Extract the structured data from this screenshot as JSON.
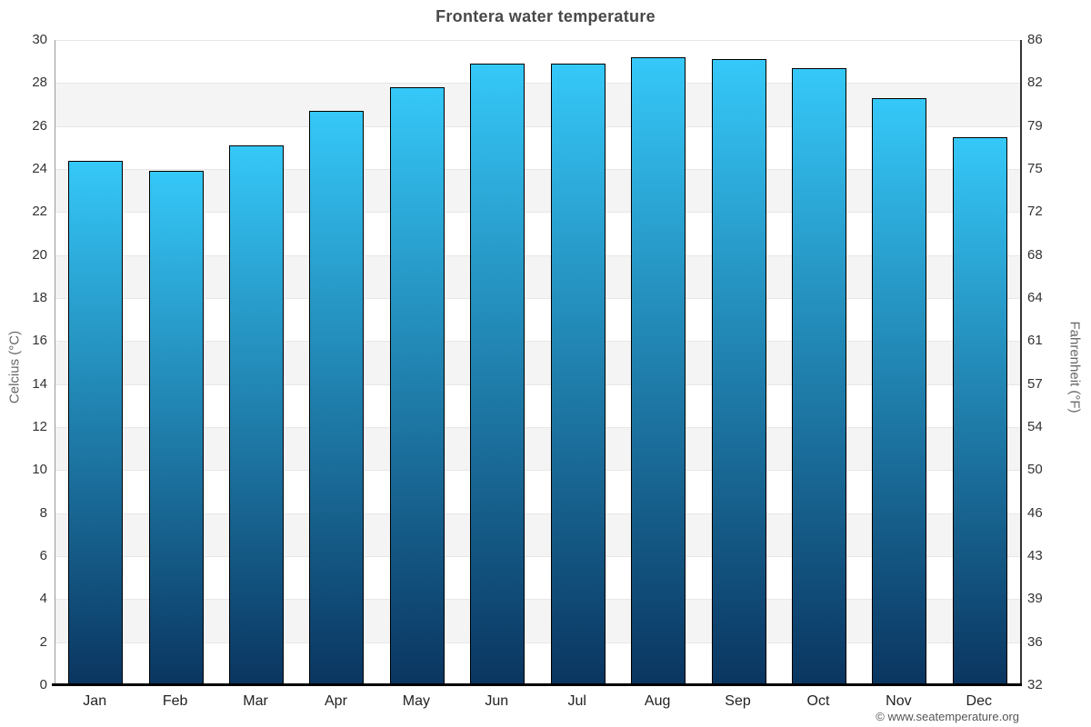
{
  "page": {
    "title": "Frontera water temperature",
    "credit": "© www.seatemperature.org"
  },
  "chart_data": {
    "type": "bar",
    "title": "Frontera water temperature",
    "categories": [
      "Jan",
      "Feb",
      "Mar",
      "Apr",
      "May",
      "Jun",
      "Jul",
      "Aug",
      "Sep",
      "Oct",
      "Nov",
      "Dec"
    ],
    "series": [
      {
        "name": "Water temperature",
        "unit": "°C",
        "values": [
          24.4,
          23.9,
          25.1,
          26.7,
          27.8,
          28.9,
          28.9,
          29.2,
          29.1,
          28.7,
          27.3,
          25.5
        ]
      }
    ],
    "ylabel_left": "Celcius (°C)",
    "ylabel_right": "Fahrenheit (°F)",
    "yticks_left": [
      0,
      2,
      4,
      6,
      8,
      10,
      12,
      14,
      16,
      18,
      20,
      22,
      24,
      26,
      28,
      30
    ],
    "yticks_right": [
      32,
      36,
      39,
      43,
      46,
      50,
      54,
      57,
      61,
      64,
      68,
      72,
      75,
      79,
      82,
      86
    ],
    "ylim": [
      0,
      30
    ],
    "xlabel": "",
    "legend": "none",
    "grid": "alternating horizontal bands every 2°C",
    "band_ranges_gray": [
      [
        2,
        4
      ],
      [
        6,
        8
      ],
      [
        10,
        12
      ],
      [
        14,
        16
      ],
      [
        18,
        20
      ],
      [
        22,
        24
      ],
      [
        26,
        28
      ]
    ],
    "colors": {
      "bar_top": "#35c8f8",
      "bar_bottom": "#0a3560",
      "bar_border": "#000000",
      "band_gray": "#f4f4f4",
      "gridline": "#e7e7e7",
      "title": "#484848",
      "tick_label": "#333333",
      "axis_title": "#666666",
      "bottom_axis": "#000000"
    }
  }
}
